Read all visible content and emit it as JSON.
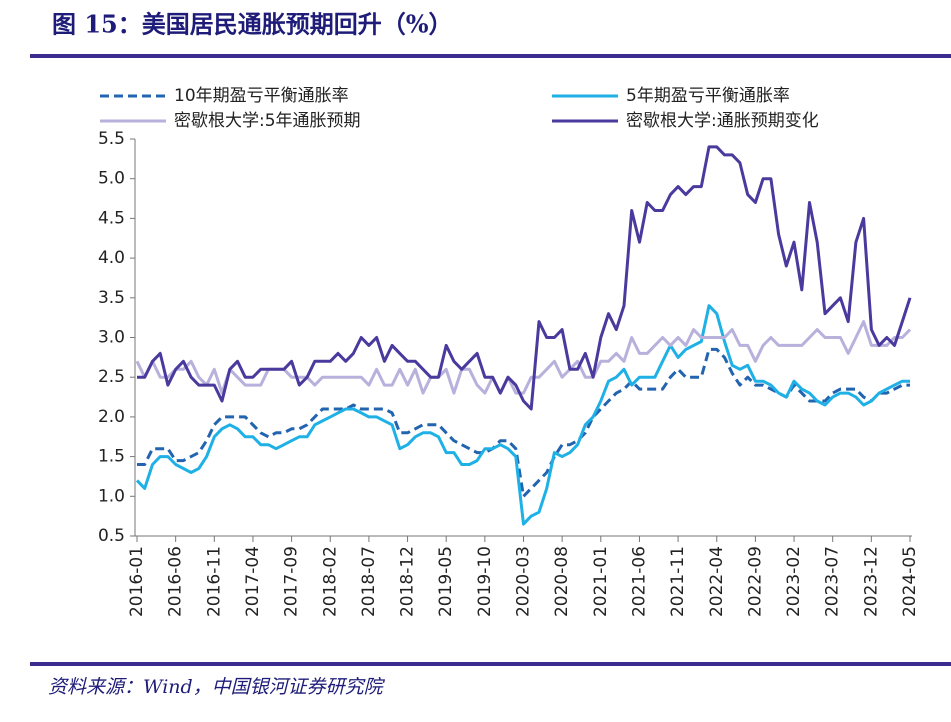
{
  "chart_data": {
    "type": "line",
    "title": "图 15：美国居民通胀预期回升（%）",
    "source": "资料来源：Wind，中国银河证券研究院",
    "categories": [
      "2016-01",
      null,
      null,
      null,
      null,
      "2016-06",
      null,
      null,
      null,
      null,
      "2016-11",
      null,
      null,
      null,
      null,
      "2017-04",
      null,
      null,
      null,
      null,
      "2017-09",
      null,
      null,
      null,
      null,
      "2018-02",
      null,
      null,
      null,
      null,
      "2018-07",
      null,
      null,
      null,
      null,
      "2018-12",
      null,
      null,
      null,
      null,
      "2019-05",
      null,
      null,
      null,
      null,
      "2019-10",
      null,
      null,
      null,
      null,
      "2020-03",
      null,
      null,
      null,
      null,
      "2020-08",
      null,
      null,
      null,
      null,
      "2021-01",
      null,
      null,
      null,
      null,
      "2021-06",
      null,
      null,
      null,
      null,
      "2021-11",
      null,
      null,
      null,
      null,
      "2022-04",
      null,
      null,
      null,
      null,
      "2022-09",
      null,
      null,
      null,
      null,
      "2023-02",
      null,
      null,
      null,
      null,
      "2023-07",
      null,
      null,
      null,
      null,
      "2023-12",
      null,
      null,
      null,
      null,
      "2024-05"
    ],
    "ylim": [
      0.5,
      5.5
    ],
    "yticks": [
      0.5,
      {
        "value": 1,
        "label": "1.0"
      },
      1.5,
      {
        "value": 2,
        "label": "2.0"
      },
      2.5,
      {
        "value": 3,
        "label": "3.0"
      },
      3.5,
      {
        "value": 4,
        "label": "4.0"
      },
      4.5,
      {
        "value": 5,
        "label": "5.0"
      },
      5.5
    ],
    "grid": false,
    "legend_position": "top",
    "series": [
      {
        "name": "10年期盈亏平衡通胀率",
        "color": "#2264b0",
        "line_style": "dashed",
        "values": [
          1.4,
          1.4,
          1.6,
          1.6,
          1.6,
          1.45,
          1.45,
          1.5,
          1.55,
          1.7,
          1.9,
          2.0,
          2.0,
          2.0,
          2.0,
          1.9,
          1.8,
          1.75,
          1.8,
          1.8,
          1.85,
          1.85,
          1.9,
          2.0,
          2.1,
          2.1,
          2.1,
          2.1,
          2.15,
          2.1,
          2.1,
          2.1,
          2.1,
          2.05,
          1.8,
          1.8,
          1.85,
          1.9,
          1.9,
          1.9,
          1.8,
          1.7,
          1.65,
          1.6,
          1.55,
          1.55,
          1.6,
          1.7,
          1.7,
          1.6,
          1.0,
          1.1,
          1.2,
          1.3,
          1.5,
          1.65,
          1.65,
          1.7,
          1.8,
          2.0,
          2.1,
          2.2,
          2.3,
          2.35,
          2.45,
          2.35,
          2.35,
          2.35,
          2.35,
          2.5,
          2.6,
          2.5,
          2.5,
          2.5,
          2.85,
          2.85,
          2.75,
          2.55,
          2.4,
          2.5,
          2.4,
          2.4,
          2.35,
          2.3,
          2.25,
          2.4,
          2.3,
          2.2,
          2.2,
          2.2,
          2.3,
          2.35,
          2.35,
          2.35,
          2.25,
          2.2,
          2.3,
          2.3,
          2.35,
          2.4,
          2.4
        ]
      },
      {
        "name": "5年期盈亏平衡通胀率",
        "color": "#1fb1e6",
        "line_style": "solid",
        "values": [
          1.2,
          1.1,
          1.4,
          1.5,
          1.5,
          1.4,
          1.35,
          1.3,
          1.35,
          1.5,
          1.75,
          1.85,
          1.9,
          1.85,
          1.75,
          1.75,
          1.65,
          1.65,
          1.6,
          1.65,
          1.7,
          1.75,
          1.75,
          1.9,
          1.95,
          2.0,
          2.05,
          2.1,
          2.1,
          2.05,
          2.0,
          2.0,
          1.95,
          1.9,
          1.6,
          1.65,
          1.75,
          1.8,
          1.8,
          1.75,
          1.55,
          1.55,
          1.4,
          1.4,
          1.45,
          1.6,
          1.6,
          1.65,
          1.6,
          1.5,
          0.65,
          0.75,
          0.8,
          1.1,
          1.55,
          1.5,
          1.55,
          1.65,
          1.9,
          2.0,
          2.2,
          2.45,
          2.5,
          2.6,
          2.4,
          2.5,
          2.5,
          2.5,
          2.7,
          2.9,
          2.75,
          2.85,
          2.9,
          2.95,
          3.4,
          3.3,
          2.95,
          2.65,
          2.6,
          2.65,
          2.45,
          2.45,
          2.4,
          2.3,
          2.25,
          2.45,
          2.35,
          2.3,
          2.2,
          2.15,
          2.25,
          2.3,
          2.3,
          2.25,
          2.15,
          2.2,
          2.3,
          2.35,
          2.4,
          2.45,
          2.45
        ]
      },
      {
        "name": "密歇根大学:5年通胀预期",
        "color": "#b7b1dc",
        "line_style": "solid",
        "values": [
          2.7,
          2.5,
          2.7,
          2.5,
          2.5,
          2.6,
          2.6,
          2.7,
          2.5,
          2.4,
          2.6,
          2.3,
          2.6,
          2.5,
          2.4,
          2.4,
          2.4,
          2.6,
          2.6,
          2.6,
          2.5,
          2.5,
          2.5,
          2.4,
          2.5,
          2.5,
          2.5,
          2.5,
          2.5,
          2.5,
          2.4,
          2.6,
          2.4,
          2.4,
          2.6,
          2.4,
          2.6,
          2.3,
          2.5,
          2.5,
          2.6,
          2.3,
          2.6,
          2.6,
          2.4,
          2.3,
          2.5,
          2.3,
          2.5,
          2.3,
          2.3,
          2.5,
          2.5,
          2.6,
          2.7,
          2.5,
          2.6,
          2.7,
          2.5,
          2.5,
          2.7,
          2.7,
          2.8,
          2.7,
          3.0,
          2.8,
          2.8,
          2.9,
          3.0,
          2.9,
          3.0,
          2.9,
          3.1,
          3.0,
          3.0,
          3.0,
          3.0,
          3.1,
          2.9,
          2.9,
          2.7,
          2.9,
          3.0,
          2.9,
          2.9,
          2.9,
          2.9,
          3.0,
          3.1,
          3.0,
          3.0,
          3.0,
          2.8,
          3.0,
          3.2,
          2.9,
          2.9,
          2.9,
          3.0,
          3.0,
          3.1
        ]
      },
      {
        "name": "密歇根大学:通胀预期变化",
        "color": "#4a3a9e",
        "line_style": "solid",
        "values": [
          2.5,
          2.5,
          2.7,
          2.8,
          2.4,
          2.6,
          2.7,
          2.5,
          2.4,
          2.4,
          2.4,
          2.2,
          2.6,
          2.7,
          2.5,
          2.5,
          2.6,
          2.6,
          2.6,
          2.6,
          2.7,
          2.4,
          2.5,
          2.7,
          2.7,
          2.7,
          2.8,
          2.7,
          2.8,
          3.0,
          2.9,
          3.0,
          2.7,
          2.9,
          2.8,
          2.7,
          2.7,
          2.6,
          2.5,
          2.5,
          2.9,
          2.7,
          2.6,
          2.7,
          2.8,
          2.5,
          2.5,
          2.3,
          2.5,
          2.4,
          2.2,
          2.1,
          3.2,
          3.0,
          3.0,
          3.1,
          2.6,
          2.6,
          2.8,
          2.5,
          3.0,
          3.3,
          3.1,
          3.4,
          4.6,
          4.2,
          4.7,
          4.6,
          4.6,
          4.8,
          4.9,
          4.8,
          4.9,
          4.9,
          5.4,
          5.4,
          5.3,
          5.3,
          5.2,
          4.8,
          4.7,
          5.0,
          5.0,
          4.3,
          3.9,
          4.2,
          3.6,
          4.7,
          4.2,
          3.3,
          3.4,
          3.5,
          3.2,
          4.2,
          4.5,
          3.1,
          2.9,
          3.0,
          2.9,
          3.2,
          3.5
        ]
      }
    ]
  }
}
